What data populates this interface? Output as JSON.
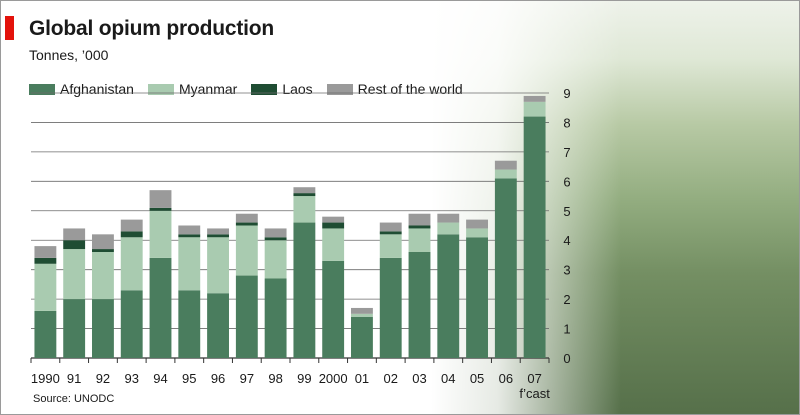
{
  "header": {
    "title": "Global opium production",
    "subtitle": "Tonnes, ’000"
  },
  "footer": {
    "source": "Source: UNODC"
  },
  "photo": {
    "description_icon": "farmer-in-poppy-field-photo"
  },
  "colors": {
    "afghanistan": "#4a7d5e",
    "myanmar": "#a9cbb0",
    "laos": "#1f4d33",
    "rest": "#9a9a9a",
    "gridline": "#6b6b6b",
    "accent": "#e3120b"
  },
  "chart_data": {
    "type": "bar",
    "stacked": true,
    "categories": [
      "1990",
      "91",
      "92",
      "93",
      "94",
      "95",
      "96",
      "97",
      "98",
      "99",
      "2000",
      "01",
      "02",
      "03",
      "04",
      "05",
      "06",
      "07\nf’cast"
    ],
    "series": [
      {
        "name": "Afghanistan",
        "values": [
          1.6,
          2.0,
          2.0,
          2.3,
          3.4,
          2.3,
          2.2,
          2.8,
          2.7,
          4.6,
          3.3,
          1.4,
          3.4,
          3.6,
          4.2,
          4.1,
          6.1,
          8.2
        ]
      },
      {
        "name": "Myanmar",
        "values": [
          1.6,
          1.7,
          1.6,
          1.8,
          1.6,
          1.8,
          1.9,
          1.7,
          1.3,
          0.9,
          1.1,
          0.1,
          0.8,
          0.8,
          0.4,
          0.3,
          0.3,
          0.5
        ]
      },
      {
        "name": "Laos",
        "values": [
          0.2,
          0.3,
          0.1,
          0.2,
          0.1,
          0.1,
          0.1,
          0.1,
          0.1,
          0.1,
          0.2,
          0.0,
          0.1,
          0.1,
          0.0,
          0.0,
          0.0,
          0.0
        ]
      },
      {
        "name": "Rest of the world",
        "values": [
          0.4,
          0.4,
          0.5,
          0.4,
          0.6,
          0.3,
          0.2,
          0.3,
          0.3,
          0.2,
          0.2,
          0.2,
          0.3,
          0.4,
          0.3,
          0.3,
          0.3,
          0.2
        ]
      }
    ],
    "y_ticks": [
      "0",
      "1",
      "2",
      "3",
      "4",
      "5",
      "6",
      "7",
      "8",
      "9"
    ],
    "ylim": [
      0,
      9
    ],
    "grid": true,
    "legend_position": "top-left",
    "y_axis_side": "right"
  }
}
